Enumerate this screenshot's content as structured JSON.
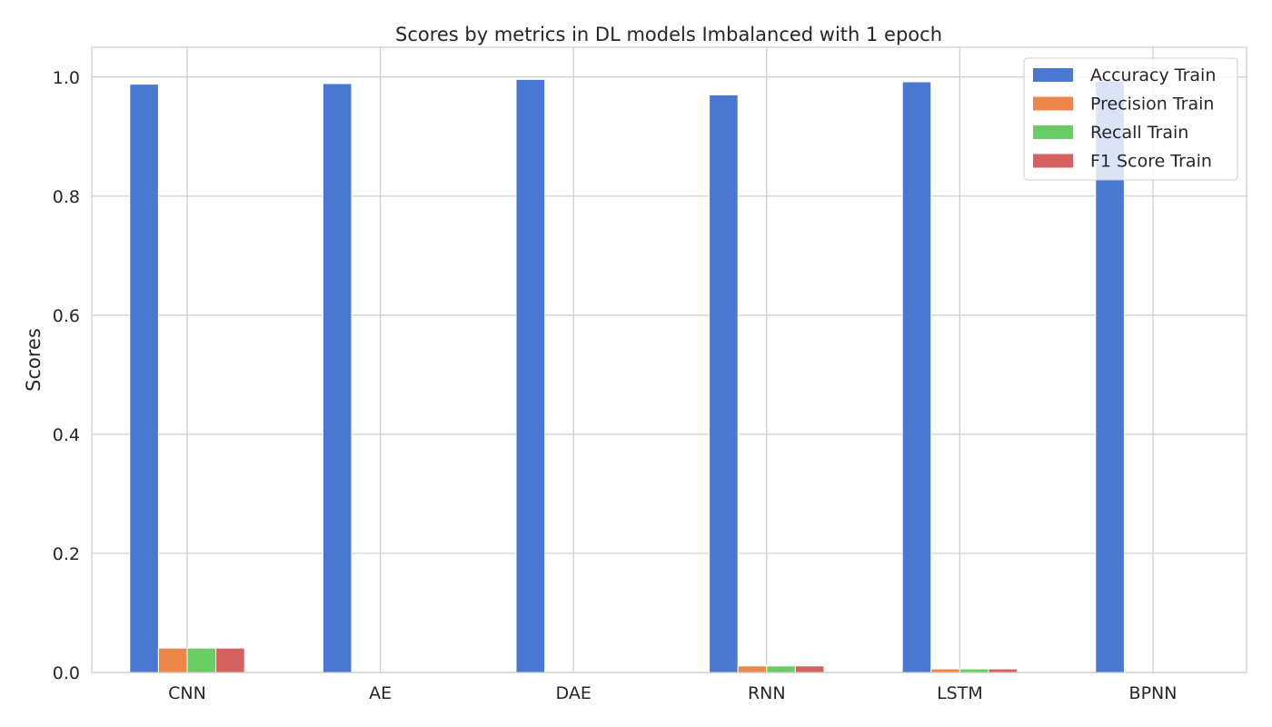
{
  "chart_data": {
    "type": "bar",
    "title": "Scores by metrics in DL models Imbalanced with 1 epoch",
    "xlabel": "",
    "ylabel": "Scores",
    "categories": [
      "CNN",
      "AE",
      "DAE",
      "RNN",
      "LSTM",
      "BPNN"
    ],
    "ylim": [
      0,
      1.05
    ],
    "yticks": [
      "0.0",
      "0.2",
      "0.4",
      "0.6",
      "0.8",
      "1.0"
    ],
    "grid": true,
    "legend_position": "top-right",
    "series": [
      {
        "name": "Accuracy Train",
        "color": "#4878d0",
        "values": [
          0.988,
          0.989,
          0.996,
          0.97,
          0.992,
          0.993
        ]
      },
      {
        "name": "Precision Train",
        "color": "#ee854a",
        "values": [
          0.041,
          0.0,
          0.0,
          0.011,
          0.006,
          0.0
        ]
      },
      {
        "name": "Recall Train",
        "color": "#6acc64",
        "values": [
          0.041,
          0.0,
          0.0,
          0.011,
          0.006,
          0.0
        ]
      },
      {
        "name": "F1 Score Train",
        "color": "#d65f5f",
        "values": [
          0.041,
          0.0,
          0.0,
          0.011,
          0.006,
          0.0
        ]
      }
    ]
  }
}
